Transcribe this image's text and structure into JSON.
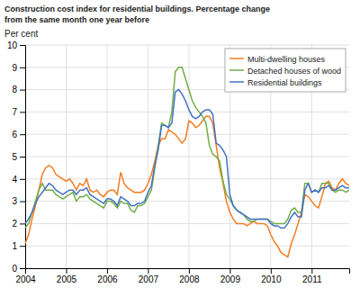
{
  "chart_data": {
    "type": "line",
    "title": "Construction cost index for residential buildings. Percentage change",
    "subtitle": "from the same month one year before",
    "y_label": "Per cent",
    "xlim": [
      2004.0,
      2011.917
    ],
    "xticks": [
      2004,
      2005,
      2006,
      2007,
      2008,
      2009,
      2010,
      2011
    ],
    "ylim": [
      0,
      10
    ],
    "yticks": [
      0,
      1,
      2,
      3,
      4,
      5,
      6,
      7,
      8,
      9,
      10
    ],
    "grid": true,
    "legend": "upper right",
    "x": [
      2004,
      2004.083333,
      2004.166667,
      2004.25,
      2004.333333,
      2004.416667,
      2004.5,
      2004.583333,
      2004.666667,
      2004.75,
      2004.833333,
      2004.916667,
      2005,
      2005.083333,
      2005.166667,
      2005.25,
      2005.333333,
      2005.416667,
      2005.5,
      2005.583333,
      2005.666667,
      2005.75,
      2005.833333,
      2005.916667,
      2006,
      2006.083333,
      2006.166667,
      2006.25,
      2006.333333,
      2006.416667,
      2006.5,
      2006.583333,
      2006.666667,
      2006.75,
      2006.833333,
      2006.916667,
      2007,
      2007.083333,
      2007.166667,
      2007.25,
      2007.333333,
      2007.416667,
      2007.5,
      2007.583333,
      2007.666667,
      2007.75,
      2007.833333,
      2007.916667,
      2008,
      2008.083333,
      2008.166667,
      2008.25,
      2008.333333,
      2008.416667,
      2008.5,
      2008.583333,
      2008.666667,
      2008.75,
      2008.833333,
      2008.916667,
      2009,
      2009.083333,
      2009.166667,
      2009.25,
      2009.333333,
      2009.416667,
      2009.5,
      2009.583333,
      2009.666667,
      2009.75,
      2009.833333,
      2009.916667,
      2010,
      2010.083333,
      2010.166667,
      2010.25,
      2010.333333,
      2010.416667,
      2010.5,
      2010.583333,
      2010.666667,
      2010.75,
      2010.833333,
      2010.916667,
      2011,
      2011.083333,
      2011.166667,
      2011.25,
      2011.333333,
      2011.416667,
      2011.5,
      2011.583333,
      2011.666667,
      2011.75,
      2011.833333,
      2011.916667
    ],
    "series": [
      {
        "name": "Multi-dwelling houses",
        "color": "#F47C20",
        "values": [
          1.1,
          1.5,
          2.2,
          2.8,
          3.5,
          4.2,
          4.5,
          4.6,
          4.5,
          4.2,
          4.1,
          4.0,
          3.9,
          4.0,
          3.8,
          3.5,
          3.8,
          3.7,
          4.0,
          3.5,
          3.4,
          3.5,
          3.3,
          3.2,
          3.4,
          3.5,
          3.5,
          3.3,
          4.3,
          3.8,
          3.6,
          3.5,
          3.4,
          3.4,
          3.4,
          3.5,
          3.8,
          4.2,
          4.8,
          5.5,
          5.8,
          5.8,
          6.2,
          6.1,
          6.0,
          5.8,
          5.6,
          5.8,
          6.6,
          6.5,
          6.3,
          6.4,
          6.6,
          6.8,
          6.8,
          6.5,
          5.5,
          4.5,
          3.8,
          3.0,
          2.5,
          2.2,
          2.0,
          2.0,
          2.0,
          1.9,
          2.0,
          2.1,
          2.0,
          2.0,
          2.0,
          1.9,
          1.5,
          1.2,
          1.0,
          0.7,
          0.6,
          0.5,
          1.1,
          1.5,
          2.0,
          2.5,
          3.3,
          3.2,
          3.0,
          2.8,
          2.7,
          3.2,
          3.8,
          3.9,
          3.6,
          3.5,
          3.8,
          4.0,
          3.8,
          3.7
        ]
      },
      {
        "name": "Detached houses of wood",
        "color": "#70AD47",
        "values": [
          1.8,
          2.0,
          2.5,
          3.0,
          3.5,
          3.8,
          3.5,
          3.5,
          3.5,
          3.3,
          3.2,
          3.1,
          3.2,
          3.3,
          3.4,
          3.0,
          3.2,
          3.2,
          3.3,
          3.1,
          3.0,
          2.9,
          2.8,
          2.7,
          3.0,
          3.0,
          2.9,
          2.7,
          3.0,
          2.9,
          2.9,
          2.6,
          2.5,
          2.8,
          2.8,
          2.9,
          3.2,
          3.5,
          4.5,
          5.5,
          6.5,
          6.4,
          6.3,
          7.0,
          8.8,
          9.0,
          9.0,
          8.5,
          8.0,
          7.5,
          7.2,
          7.0,
          6.8,
          6.5,
          5.5,
          5.1,
          5.0,
          4.8,
          3.9,
          3.3,
          3.1,
          2.8,
          2.6,
          2.5,
          2.4,
          2.2,
          2.1,
          2.1,
          2.2,
          2.2,
          2.2,
          2.2,
          2.1,
          2.0,
          2.0,
          2.0,
          2.0,
          2.2,
          2.6,
          2.7,
          2.5,
          2.5,
          3.8,
          3.8,
          3.4,
          3.5,
          3.4,
          3.8,
          3.8,
          3.8,
          3.5,
          3.4,
          3.5,
          3.5,
          3.4,
          3.5
        ]
      },
      {
        "name": "Residential buildings",
        "color": "#4472C4",
        "values": [
          2.0,
          2.2,
          2.5,
          2.9,
          3.2,
          3.4,
          3.6,
          3.8,
          3.7,
          3.5,
          3.4,
          3.3,
          3.4,
          3.5,
          3.5,
          3.3,
          3.5,
          3.5,
          3.6,
          3.3,
          3.2,
          3.1,
          3.0,
          2.9,
          3.1,
          3.1,
          3.0,
          2.8,
          3.2,
          3.1,
          3.0,
          2.8,
          2.8,
          2.9,
          2.9,
          3.0,
          3.4,
          3.7,
          4.6,
          5.3,
          6.4,
          6.4,
          6.3,
          6.5,
          7.9,
          8.0,
          7.8,
          7.5,
          7.1,
          6.8,
          6.7,
          6.8,
          7.0,
          7.1,
          7.1,
          6.9,
          5.6,
          5.5,
          5.3,
          5.0,
          3.3,
          2.8,
          2.6,
          2.5,
          2.4,
          2.3,
          2.2,
          2.2,
          2.2,
          2.2,
          2.2,
          2.2,
          2.0,
          1.9,
          1.9,
          1.8,
          1.8,
          2.0,
          2.3,
          2.5,
          2.3,
          2.3,
          3.5,
          3.8,
          3.4,
          3.5,
          3.4,
          3.6,
          3.6,
          3.7,
          3.5,
          3.5,
          3.6,
          3.7,
          3.6,
          3.6
        ]
      }
    ]
  }
}
